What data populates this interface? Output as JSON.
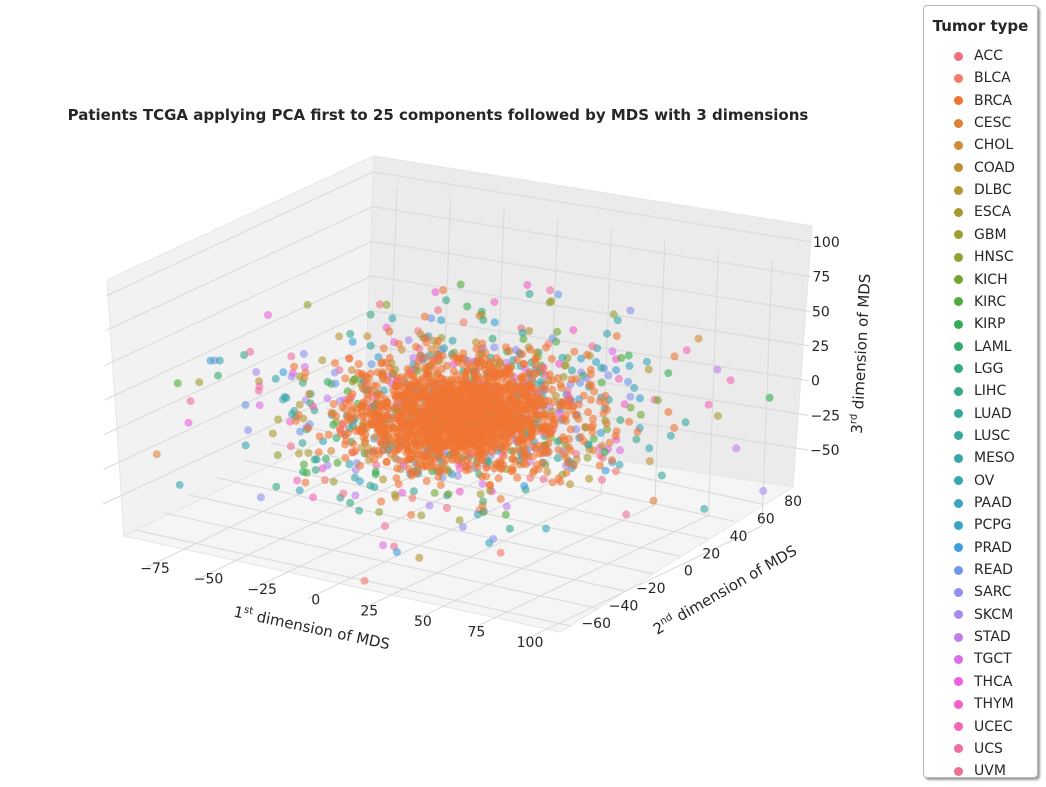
{
  "chart_data": {
    "type": "scatter",
    "projection": "3d",
    "title": "Patients TCGA applying PCA first to 25 components followed by MDS with 3 dimensions",
    "xlabel": {
      "pre": "1",
      "sup": "st",
      "post": " dimension of MDS"
    },
    "ylabel": {
      "pre": "2",
      "sup": "nd",
      "post": " dimension of MDS"
    },
    "zlabel": {
      "pre": "3",
      "sup": "rd",
      "post": " dimension of MDS"
    },
    "xticks": [
      -75,
      -50,
      -25,
      0,
      25,
      50,
      75,
      100
    ],
    "yticks": [
      -60,
      -40,
      -20,
      0,
      20,
      40,
      60,
      80
    ],
    "zticks": [
      -50,
      -25,
      0,
      25,
      50,
      75,
      100
    ],
    "xlim": [
      -90,
      110
    ],
    "ylim": [
      -70,
      85
    ],
    "zlim": [
      -65,
      110
    ],
    "point_alpha": 0.6,
    "dominant_series": "BRCA",
    "legend": {
      "title": "Tumor type",
      "items": [
        {
          "name": "ACC",
          "color": "#f0717e"
        },
        {
          "name": "BLCA",
          "color": "#f27a6b"
        },
        {
          "name": "BRCA",
          "color": "#f07432"
        },
        {
          "name": "CESC",
          "color": "#de8332"
        },
        {
          "name": "CHOL",
          "color": "#cf8b33"
        },
        {
          "name": "COAD",
          "color": "#c18f33"
        },
        {
          "name": "DLBC",
          "color": "#b59432"
        },
        {
          "name": "ESCA",
          "color": "#a89a31"
        },
        {
          "name": "GBM",
          "color": "#9c9e31"
        },
        {
          "name": "HNSC",
          "color": "#8ea131"
        },
        {
          "name": "KICH",
          "color": "#73a631"
        },
        {
          "name": "KIRC",
          "color": "#4fab3a"
        },
        {
          "name": "KIRP",
          "color": "#34ad54"
        },
        {
          "name": "LAML",
          "color": "#33ab6c"
        },
        {
          "name": "LGG",
          "color": "#34aa7e"
        },
        {
          "name": "LIHC",
          "color": "#35a98c"
        },
        {
          "name": "LUAD",
          "color": "#35a898"
        },
        {
          "name": "LUSC",
          "color": "#36a7a1"
        },
        {
          "name": "MESO",
          "color": "#36a6aa"
        },
        {
          "name": "OV",
          "color": "#37a6b3"
        },
        {
          "name": "PAAD",
          "color": "#38a5bc"
        },
        {
          "name": "PCPG",
          "color": "#39a4c8"
        },
        {
          "name": "PRAD",
          "color": "#3c9fdc"
        },
        {
          "name": "READ",
          "color": "#6d98ea"
        },
        {
          "name": "SARC",
          "color": "#8c92ed"
        },
        {
          "name": "SKCM",
          "color": "#a88aec"
        },
        {
          "name": "STAD",
          "color": "#c47deb"
        },
        {
          "name": "TGCT",
          "color": "#da6ee6"
        },
        {
          "name": "THCA",
          "color": "#eb5fdc"
        },
        {
          "name": "THYM",
          "color": "#f25ecc"
        },
        {
          "name": "UCEC",
          "color": "#f465b9"
        },
        {
          "name": "UCS",
          "color": "#f16ca4"
        },
        {
          "name": "UVM",
          "color": "#ee7090"
        }
      ]
    }
  }
}
